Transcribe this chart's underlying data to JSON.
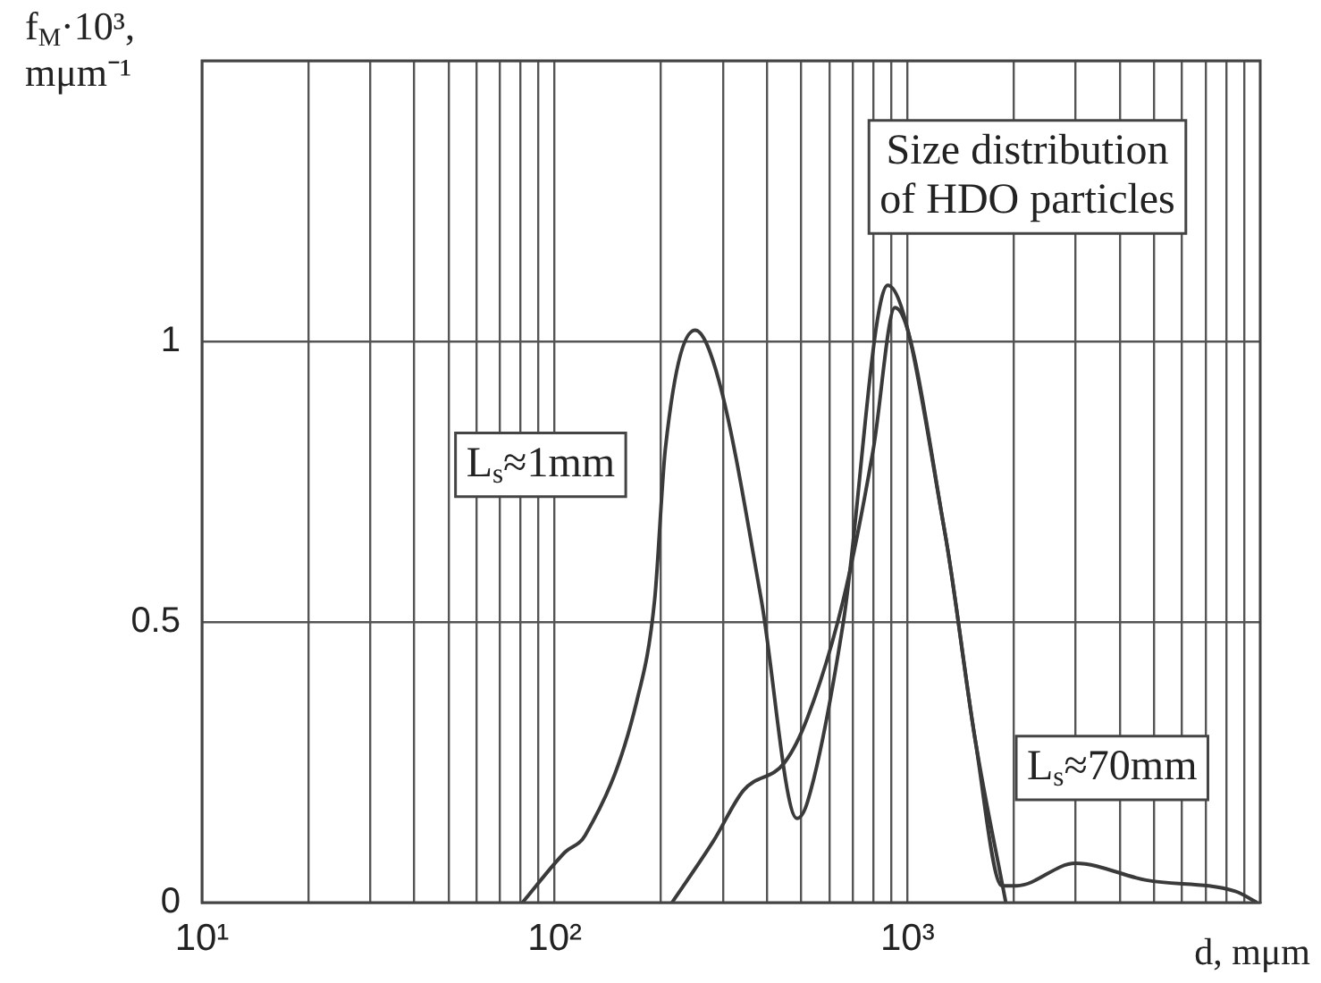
{
  "chart_data": {
    "type": "line",
    "title": "Size distribution\nof HDO particles",
    "xlabel": "d, mμm",
    "ylabel": "f$_{M}$·10³,\nmμm⁻¹",
    "log": "x",
    "grid": true,
    "marker": "none",
    "line_style": "solid",
    "xlim": [
      10,
      10000
    ],
    "ylim": [
      0,
      1.5
    ],
    "xticks": [
      {
        "value": 10,
        "label": "10¹"
      },
      {
        "value": 20,
        "label": null
      },
      {
        "value": 30,
        "label": null
      },
      {
        "value": 40,
        "label": null
      },
      {
        "value": 50,
        "label": null
      },
      {
        "value": 60,
        "label": null
      },
      {
        "value": 70,
        "label": null
      },
      {
        "value": 80,
        "label": null
      },
      {
        "value": 90,
        "label": null
      },
      {
        "value": 100,
        "label": "10²"
      },
      {
        "value": 200,
        "label": null
      },
      {
        "value": 300,
        "label": null
      },
      {
        "value": 400,
        "label": null
      },
      {
        "value": 500,
        "label": null
      },
      {
        "value": 600,
        "label": null
      },
      {
        "value": 700,
        "label": null
      },
      {
        "value": 800,
        "label": null
      },
      {
        "value": 900,
        "label": null
      },
      {
        "value": 1000,
        "label": "10³"
      },
      {
        "value": 2000,
        "label": null
      },
      {
        "value": 3000,
        "label": null
      },
      {
        "value": 4000,
        "label": null
      },
      {
        "value": 5000,
        "label": null
      },
      {
        "value": 6000,
        "label": null
      },
      {
        "value": 7000,
        "label": null
      },
      {
        "value": 8000,
        "label": null
      },
      {
        "value": 9000,
        "label": null
      }
    ],
    "yticks": [
      0,
      0.5,
      1,
      {
        "value": 1.5,
        "label": null
      }
    ],
    "series": [
      {
        "color": "#3a3a3a",
        "x": [
          81,
          107,
          122,
          171,
          192,
          206,
          250,
          292,
          385,
          486,
          521,
          658,
          879,
          1276,
          1556,
          1853,
          2040,
          2990,
          4750,
          8500,
          9800
        ],
        "values": [
          0,
          0.09,
          0.12,
          0.36,
          0.54,
          0.81,
          1.02,
          0.93,
          0.54,
          0.15,
          0.18,
          0.5,
          1.1,
          0.66,
          0.29,
          0.03,
          0.03,
          0.07,
          0.04,
          0.02,
          0
        ]
      },
      {
        "color": "#3a3a3a",
        "x": [
          215,
          282,
          343,
          449,
          521,
          658,
          801,
          922,
          1276,
          1556,
          1900
        ],
        "values": [
          0,
          0.11,
          0.2,
          0.25,
          0.33,
          0.54,
          0.81,
          1.06,
          0.66,
          0.29,
          0
        ]
      }
    ],
    "annotations": [
      "L$_{s}$≈1mm",
      "L$_{s}$≈70mm"
    ]
  }
}
